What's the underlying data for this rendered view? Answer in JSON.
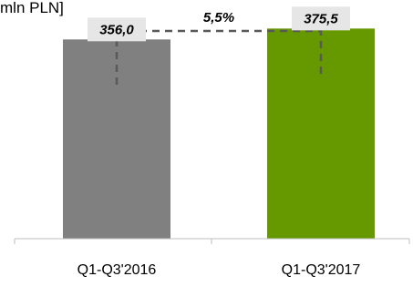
{
  "chart_data": {
    "type": "bar",
    "unit_label": "mln PLN]",
    "categories": [
      "Q1-Q3'2016",
      "Q1-Q3'2017"
    ],
    "values": [
      356.0,
      375.5
    ],
    "value_labels": [
      "356,0",
      "375,5"
    ],
    "colors": [
      "#808080",
      "#669900"
    ],
    "label_box_color": "#e6e6e6",
    "growth_label": "5,5%",
    "ylim": [
      0,
      420
    ],
    "grid": false,
    "legend": "none"
  }
}
